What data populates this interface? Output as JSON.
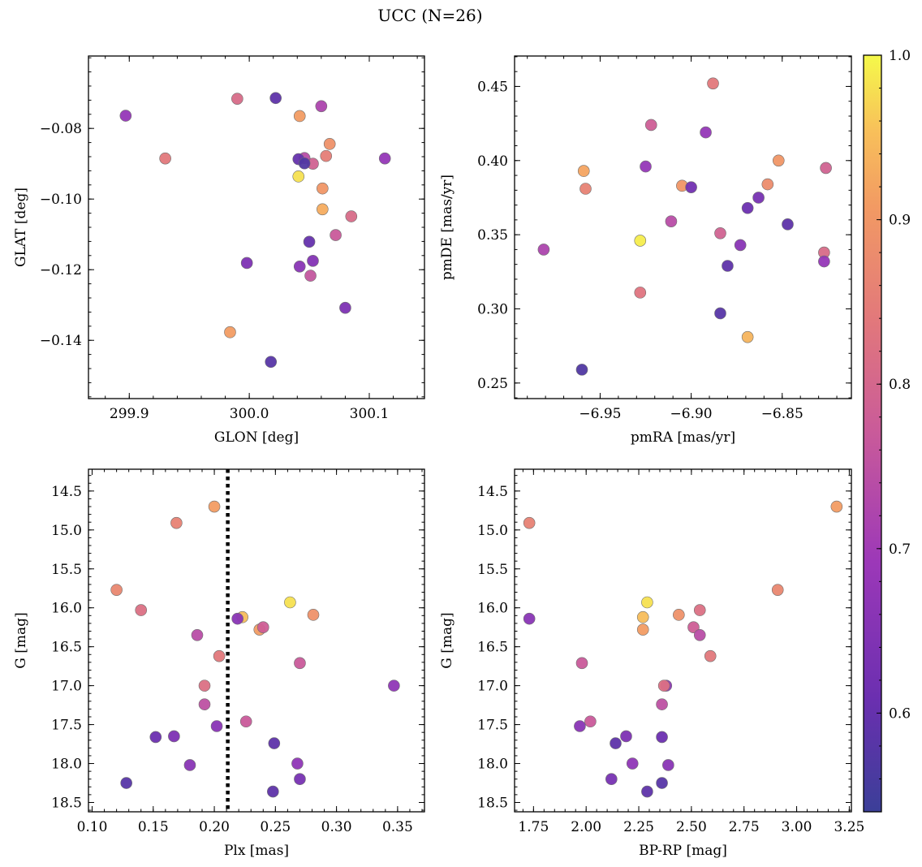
{
  "figure": {
    "title": "UCC (N=26)"
  },
  "colorbar": {
    "range": [
      0.54,
      1.0
    ],
    "ticks": [
      0.6,
      0.7,
      0.8,
      0.9,
      1.0
    ],
    "tick_labels": [
      "0.6",
      "0.7",
      "0.8",
      "0.9",
      "1.0"
    ],
    "colormap": "plasma"
  },
  "chart_data": [
    {
      "type": "scatter",
      "xlabel": "GLON [deg]",
      "ylabel": "GLAT [deg]",
      "xlim": [
        299.866,
        300.146
      ],
      "ylim": [
        -0.1565,
        -0.0595
      ],
      "y_inverted": false,
      "xticks": [
        299.9,
        300.0,
        300.1
      ],
      "xtick_labels": [
        "299.9",
        "300.0",
        "300.1"
      ],
      "yticks": [
        -0.14,
        -0.12,
        -0.1,
        -0.08
      ],
      "ytick_labels": [
        "−0.14",
        "−0.12",
        "−0.10",
        "−0.08"
      ],
      "points": [
        {
          "x": 299.897,
          "y": -0.0764,
          "c": 0.68
        },
        {
          "x": 299.93,
          "y": -0.0885,
          "c": 0.84
        },
        {
          "x": 299.99,
          "y": -0.0716,
          "c": 0.81
        },
        {
          "x": 300.022,
          "y": -0.0714,
          "c": 0.59
        },
        {
          "x": 300.042,
          "y": -0.0765,
          "c": 0.91
        },
        {
          "x": 300.06,
          "y": -0.0737,
          "c": 0.72
        },
        {
          "x": 300.067,
          "y": -0.0844,
          "c": 0.89
        },
        {
          "x": 300.064,
          "y": -0.0878,
          "c": 0.85
        },
        {
          "x": 300.053,
          "y": -0.09,
          "c": 0.79
        },
        {
          "x": 300.046,
          "y": -0.0884,
          "c": 0.74
        },
        {
          "x": 300.041,
          "y": -0.0887,
          "c": 0.6
        },
        {
          "x": 300.046,
          "y": -0.0899,
          "c": 0.57
        },
        {
          "x": 300.113,
          "y": -0.0885,
          "c": 0.68
        },
        {
          "x": 300.041,
          "y": -0.0936,
          "c": 0.98
        },
        {
          "x": 300.061,
          "y": -0.097,
          "c": 0.9
        },
        {
          "x": 300.061,
          "y": -0.1029,
          "c": 0.93
        },
        {
          "x": 300.085,
          "y": -0.1049,
          "c": 0.81
        },
        {
          "x": 300.072,
          "y": -0.1102,
          "c": 0.77
        },
        {
          "x": 300.05,
          "y": -0.1121,
          "c": 0.6
        },
        {
          "x": 299.998,
          "y": -0.1181,
          "c": 0.64
        },
        {
          "x": 300.053,
          "y": -0.1175,
          "c": 0.65
        },
        {
          "x": 300.042,
          "y": -0.1191,
          "c": 0.66
        },
        {
          "x": 300.051,
          "y": -0.1217,
          "c": 0.76
        },
        {
          "x": 300.08,
          "y": -0.1308,
          "c": 0.64
        },
        {
          "x": 299.984,
          "y": -0.1377,
          "c": 0.91
        },
        {
          "x": 300.018,
          "y": -0.1461,
          "c": 0.58
        }
      ]
    },
    {
      "type": "scatter",
      "xlabel": "pmRA [mas/yr]",
      "ylabel": "pmDE [mas/yr]",
      "xlim": [
        -6.997,
        -6.812
      ],
      "ylim": [
        0.2395,
        0.4705
      ],
      "y_inverted": false,
      "xticks": [
        -6.95,
        -6.9,
        -6.85
      ],
      "xtick_labels": [
        "−6.95",
        "−6.90",
        "−6.85"
      ],
      "yticks": [
        0.25,
        0.3,
        0.35,
        0.4,
        0.45
      ],
      "ytick_labels": [
        "0.25",
        "0.30",
        "0.35",
        "0.40",
        "0.45"
      ],
      "points": [
        {
          "x": -6.888,
          "y": 0.452,
          "c": 0.84
        },
        {
          "x": -6.922,
          "y": 0.424,
          "c": 0.78
        },
        {
          "x": -6.892,
          "y": 0.419,
          "c": 0.68
        },
        {
          "x": -6.852,
          "y": 0.4,
          "c": 0.9
        },
        {
          "x": -6.925,
          "y": 0.396,
          "c": 0.68
        },
        {
          "x": -6.959,
          "y": 0.393,
          "c": 0.92
        },
        {
          "x": -6.826,
          "y": 0.395,
          "c": 0.79
        },
        {
          "x": -6.858,
          "y": 0.384,
          "c": 0.88
        },
        {
          "x": -6.905,
          "y": 0.383,
          "c": 0.9
        },
        {
          "x": -6.9,
          "y": 0.382,
          "c": 0.62
        },
        {
          "x": -6.958,
          "y": 0.381,
          "c": 0.86
        },
        {
          "x": -6.863,
          "y": 0.375,
          "c": 0.63
        },
        {
          "x": -6.869,
          "y": 0.368,
          "c": 0.61
        },
        {
          "x": -6.911,
          "y": 0.359,
          "c": 0.74
        },
        {
          "x": -6.847,
          "y": 0.357,
          "c": 0.59
        },
        {
          "x": -6.884,
          "y": 0.351,
          "c": 0.79
        },
        {
          "x": -6.928,
          "y": 0.346,
          "c": 0.99
        },
        {
          "x": -6.873,
          "y": 0.343,
          "c": 0.66
        },
        {
          "x": -6.981,
          "y": 0.34,
          "c": 0.72
        },
        {
          "x": -6.827,
          "y": 0.338,
          "c": 0.81
        },
        {
          "x": -6.827,
          "y": 0.332,
          "c": 0.68
        },
        {
          "x": -6.88,
          "y": 0.329,
          "c": 0.59
        },
        {
          "x": -6.928,
          "y": 0.311,
          "c": 0.83
        },
        {
          "x": -6.884,
          "y": 0.297,
          "c": 0.58
        },
        {
          "x": -6.869,
          "y": 0.281,
          "c": 0.94
        },
        {
          "x": -6.96,
          "y": 0.259,
          "c": 0.57
        }
      ]
    },
    {
      "type": "scatter",
      "xlabel": "Plx [mas]",
      "ylabel": "G [mag]",
      "xlim": [
        0.097,
        0.372
      ],
      "ylim": [
        18.62,
        14.22
      ],
      "y_inverted": true,
      "vline": {
        "x": 0.211,
        "style": "dotted"
      },
      "xticks": [
        0.1,
        0.15,
        0.2,
        0.25,
        0.3,
        0.35
      ],
      "xtick_labels": [
        "0.10",
        "0.15",
        "0.20",
        "0.25",
        "0.30",
        "0.35"
      ],
      "yticks": [
        14.5,
        15.0,
        15.5,
        16.0,
        16.5,
        17.0,
        17.5,
        18.0,
        18.5
      ],
      "ytick_labels": [
        "14.5",
        "15.0",
        "15.5",
        "16.0",
        "16.5",
        "17.0",
        "17.5",
        "18.0",
        "18.5"
      ],
      "points": [
        {
          "x": 0.2,
          "y": 14.7,
          "c": 0.91
        },
        {
          "x": 0.169,
          "y": 14.91,
          "c": 0.86
        },
        {
          "x": 0.12,
          "y": 15.77,
          "c": 0.87
        },
        {
          "x": 0.14,
          "y": 16.03,
          "c": 0.82
        },
        {
          "x": 0.262,
          "y": 15.93,
          "c": 0.98
        },
        {
          "x": 0.281,
          "y": 16.09,
          "c": 0.89
        },
        {
          "x": 0.223,
          "y": 16.12,
          "c": 0.95
        },
        {
          "x": 0.219,
          "y": 16.14,
          "c": 0.66
        },
        {
          "x": 0.237,
          "y": 16.28,
          "c": 0.91
        },
        {
          "x": 0.24,
          "y": 16.25,
          "c": 0.78
        },
        {
          "x": 0.186,
          "y": 16.35,
          "c": 0.74
        },
        {
          "x": 0.204,
          "y": 16.62,
          "c": 0.84
        },
        {
          "x": 0.27,
          "y": 16.71,
          "c": 0.77
        },
        {
          "x": 0.192,
          "y": 17.0,
          "c": 0.82
        },
        {
          "x": 0.347,
          "y": 17.0,
          "c": 0.67
        },
        {
          "x": 0.192,
          "y": 17.24,
          "c": 0.75
        },
        {
          "x": 0.226,
          "y": 17.46,
          "c": 0.77
        },
        {
          "x": 0.202,
          "y": 17.52,
          "c": 0.66
        },
        {
          "x": 0.152,
          "y": 17.66,
          "c": 0.61
        },
        {
          "x": 0.167,
          "y": 17.65,
          "c": 0.64
        },
        {
          "x": 0.249,
          "y": 17.74,
          "c": 0.59
        },
        {
          "x": 0.18,
          "y": 18.02,
          "c": 0.66
        },
        {
          "x": 0.268,
          "y": 18.0,
          "c": 0.67
        },
        {
          "x": 0.27,
          "y": 18.2,
          "c": 0.63
        },
        {
          "x": 0.128,
          "y": 18.25,
          "c": 0.58
        },
        {
          "x": 0.248,
          "y": 18.36,
          "c": 0.59
        }
      ]
    },
    {
      "type": "scatter",
      "xlabel": "BP-RP [mag]",
      "ylabel": "G [mag]",
      "xlim": [
        1.66,
        3.26
      ],
      "ylim": [
        18.62,
        14.22
      ],
      "y_inverted": true,
      "xticks": [
        1.75,
        2.0,
        2.25,
        2.5,
        2.75,
        3.0,
        3.25
      ],
      "xtick_labels": [
        "1.75",
        "2.00",
        "2.25",
        "2.50",
        "2.75",
        "3.00",
        "3.25"
      ],
      "yticks": [
        14.5,
        15.0,
        15.5,
        16.0,
        16.5,
        17.0,
        17.5,
        18.0,
        18.5
      ],
      "ytick_labels": [
        "14.5",
        "15.0",
        "15.5",
        "16.0",
        "16.5",
        "17.0",
        "17.5",
        "18.0",
        "18.5"
      ],
      "points": [
        {
          "x": 3.19,
          "y": 14.7,
          "c": 0.91
        },
        {
          "x": 1.73,
          "y": 14.91,
          "c": 0.86
        },
        {
          "x": 2.91,
          "y": 15.77,
          "c": 0.87
        },
        {
          "x": 2.29,
          "y": 15.93,
          "c": 0.98
        },
        {
          "x": 1.73,
          "y": 16.14,
          "c": 0.66
        },
        {
          "x": 2.27,
          "y": 16.12,
          "c": 0.95
        },
        {
          "x": 2.44,
          "y": 16.09,
          "c": 0.89
        },
        {
          "x": 2.54,
          "y": 16.03,
          "c": 0.82
        },
        {
          "x": 2.27,
          "y": 16.28,
          "c": 0.91
        },
        {
          "x": 2.51,
          "y": 16.25,
          "c": 0.78
        },
        {
          "x": 2.54,
          "y": 16.35,
          "c": 0.74
        },
        {
          "x": 2.59,
          "y": 16.62,
          "c": 0.84
        },
        {
          "x": 1.98,
          "y": 16.71,
          "c": 0.77
        },
        {
          "x": 2.38,
          "y": 17.0,
          "c": 0.67
        },
        {
          "x": 2.37,
          "y": 17.0,
          "c": 0.82
        },
        {
          "x": 2.36,
          "y": 17.24,
          "c": 0.75
        },
        {
          "x": 2.02,
          "y": 17.46,
          "c": 0.77
        },
        {
          "x": 1.97,
          "y": 17.52,
          "c": 0.66
        },
        {
          "x": 2.19,
          "y": 17.65,
          "c": 0.64
        },
        {
          "x": 2.36,
          "y": 17.66,
          "c": 0.61
        },
        {
          "x": 2.14,
          "y": 17.74,
          "c": 0.59
        },
        {
          "x": 2.22,
          "y": 18.0,
          "c": 0.67
        },
        {
          "x": 2.39,
          "y": 18.02,
          "c": 0.66
        },
        {
          "x": 2.12,
          "y": 18.2,
          "c": 0.63
        },
        {
          "x": 2.36,
          "y": 18.25,
          "c": 0.58
        },
        {
          "x": 2.29,
          "y": 18.36,
          "c": 0.59
        }
      ]
    }
  ]
}
